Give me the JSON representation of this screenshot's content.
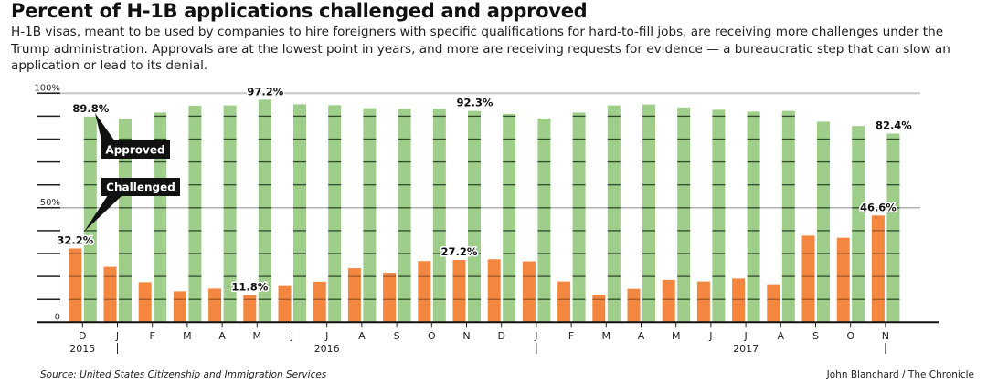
{
  "title": "Percent of H-1B applications challenged and approved",
  "subtitle": "H-1B visas, meant to be used by companies to hire foreigners with specific qualifications for hard-to-fill jobs, are receiving more challenges under the Trump administration. Approvals are at the lowest point in years, and more are receiving requests for evidence — a bureaucratic step that can slow an application or lead to its denial.",
  "source": "Source: United States Citizenship and Immigration Services",
  "credit": "John Blanchard / The Chronicle",
  "chart_data": {
    "type": "bar",
    "categories": [
      "D",
      "J",
      "F",
      "M",
      "A",
      "M",
      "J",
      "J",
      "A",
      "S",
      "O",
      "N",
      "D",
      "J",
      "F",
      "M",
      "A",
      "M",
      "J",
      "J",
      "A",
      "S",
      "O",
      "N"
    ],
    "years": [
      {
        "label": "2015",
        "at": 0
      },
      {
        "label": "2016",
        "at": 7
      },
      {
        "label": "2017",
        "at": 19
      }
    ],
    "year_breaks": [
      1,
      13,
      23
    ],
    "series": [
      {
        "name": "Challenged",
        "color": "#f4873f",
        "values": [
          32.2,
          24.2,
          17.5,
          13.5,
          14.7,
          11.8,
          15.8,
          17.7,
          23.6,
          21.6,
          26.7,
          27.2,
          27.5,
          26.6,
          17.8,
          12.1,
          14.6,
          18.5,
          17.8,
          19.1,
          16.6,
          37.8,
          36.9,
          46.6
        ]
      },
      {
        "name": "Approved",
        "color": "#9fce8a",
        "values": [
          89.8,
          88.8,
          91.6,
          94.6,
          94.7,
          97.2,
          95.2,
          94.8,
          93.5,
          93.2,
          93.2,
          92.3,
          91.0,
          89.0,
          91.6,
          94.7,
          95.1,
          93.8,
          92.8,
          92.0,
          92.3,
          87.6,
          85.7,
          82.4
        ]
      }
    ],
    "data_labels": [
      {
        "series": 0,
        "index": 0,
        "text": "32.2%"
      },
      {
        "series": 1,
        "index": 0,
        "text": "89.8%"
      },
      {
        "series": 0,
        "index": 5,
        "text": "11.8%"
      },
      {
        "series": 1,
        "index": 5,
        "text": "97.2%"
      },
      {
        "series": 0,
        "index": 11,
        "text": "27.2%"
      },
      {
        "series": 1,
        "index": 11,
        "text": "92.3%"
      },
      {
        "series": 0,
        "index": 23,
        "text": "46.6%"
      },
      {
        "series": 1,
        "index": 23,
        "text": "82.4%"
      }
    ],
    "callouts": [
      "Approved",
      "Challenged"
    ],
    "ylim": [
      0,
      100
    ],
    "yticks": [
      {
        "v": 0,
        "label": "0"
      },
      {
        "v": 50,
        "label": "50%"
      },
      {
        "v": 100,
        "label": "100%"
      }
    ],
    "ytick_step": 10,
    "grid": true
  }
}
